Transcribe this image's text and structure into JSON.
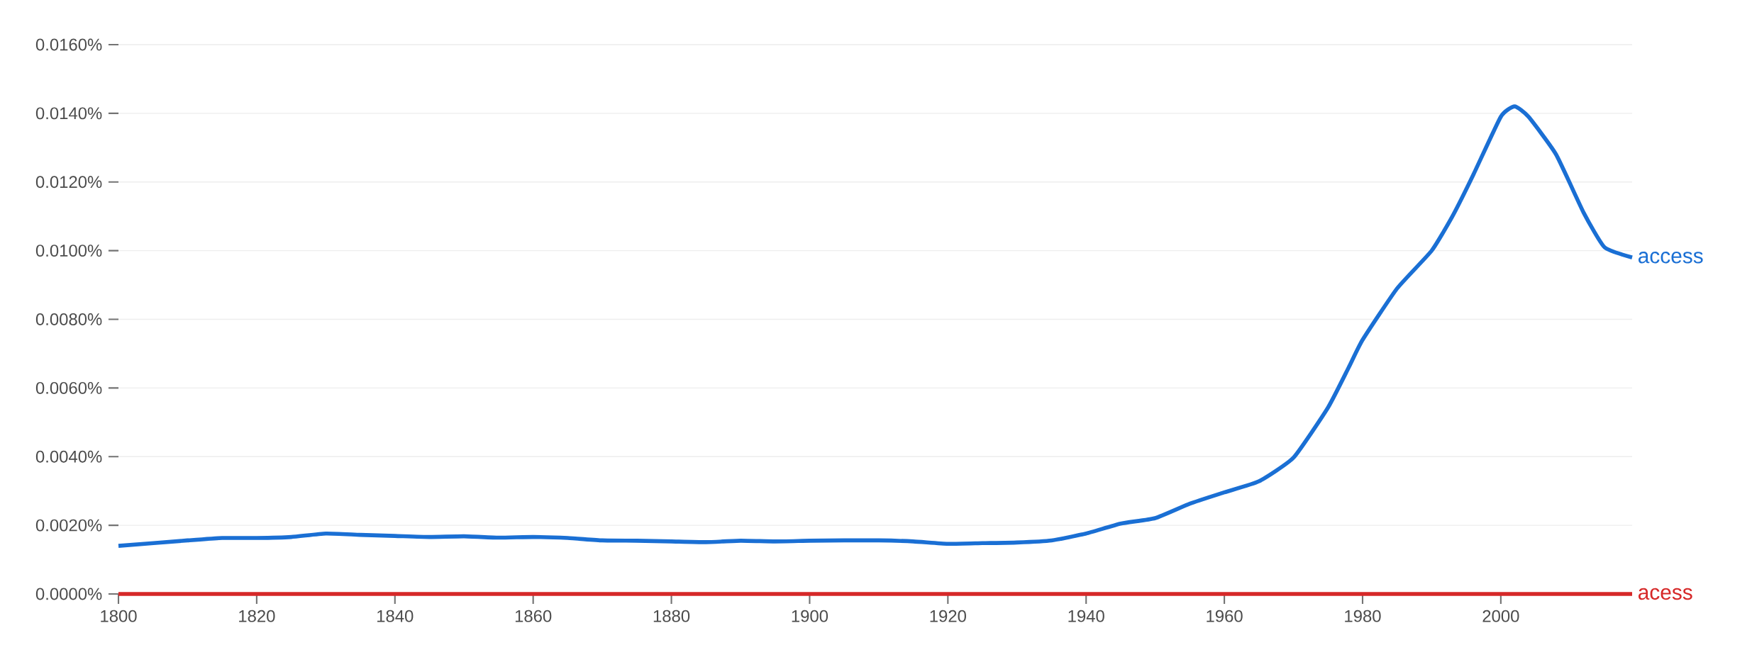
{
  "chart_data": {
    "type": "line",
    "x": [
      1800,
      1810,
      1815,
      1820,
      1825,
      1830,
      1835,
      1840,
      1845,
      1850,
      1855,
      1860,
      1865,
      1870,
      1875,
      1880,
      1885,
      1890,
      1895,
      1900,
      1905,
      1910,
      1915,
      1920,
      1925,
      1930,
      1935,
      1940,
      1945,
      1950,
      1955,
      1960,
      1965,
      1970,
      1975,
      1978,
      1980,
      1985,
      1990,
      1993,
      1996,
      2000,
      2002,
      2004,
      2008,
      2012,
      2015,
      2019
    ],
    "series": [
      {
        "name": "access",
        "color": "#1a6fd4",
        "values": [
          0.0014,
          0.00156,
          0.00163,
          0.00163,
          0.00166,
          0.00176,
          0.00172,
          0.00169,
          0.00166,
          0.00168,
          0.00164,
          0.00166,
          0.00163,
          0.00156,
          0.00155,
          0.00153,
          0.00151,
          0.00155,
          0.00153,
          0.00155,
          0.00156,
          0.00156,
          0.00153,
          0.00146,
          0.00148,
          0.0015,
          0.00156,
          0.00176,
          0.00205,
          0.00221,
          0.00263,
          0.00296,
          0.00328,
          0.00397,
          0.00543,
          0.0066,
          0.0074,
          0.0089,
          0.01,
          0.011,
          0.0122,
          0.0139,
          0.0142,
          0.0139,
          0.0128,
          0.0111,
          0.0101,
          0.0098
        ]
      },
      {
        "name": "acess",
        "color": "#d62828",
        "x": [
          1800,
          2019
        ],
        "values": [
          0,
          0
        ]
      }
    ],
    "xlim": [
      1800,
      2019
    ],
    "xticks": [
      1800,
      1820,
      1840,
      1860,
      1880,
      1900,
      1920,
      1940,
      1960,
      1980,
      2000
    ],
    "ylim": [
      0,
      0.016
    ],
    "yticks": [
      {
        "value": 0,
        "label": "0.0000%"
      },
      {
        "value": 0.002,
        "label": "0.0020%"
      },
      {
        "value": 0.004,
        "label": "0.0040%"
      },
      {
        "value": 0.006,
        "label": "0.0060%"
      },
      {
        "value": 0.008,
        "label": "0.0080%"
      },
      {
        "value": 0.01,
        "label": "0.0100%"
      },
      {
        "value": 0.012,
        "label": "0.0120%"
      },
      {
        "value": 0.014,
        "label": "0.0140%"
      },
      {
        "value": 0.016,
        "label": "0.0160%"
      }
    ],
    "grid": "y"
  }
}
